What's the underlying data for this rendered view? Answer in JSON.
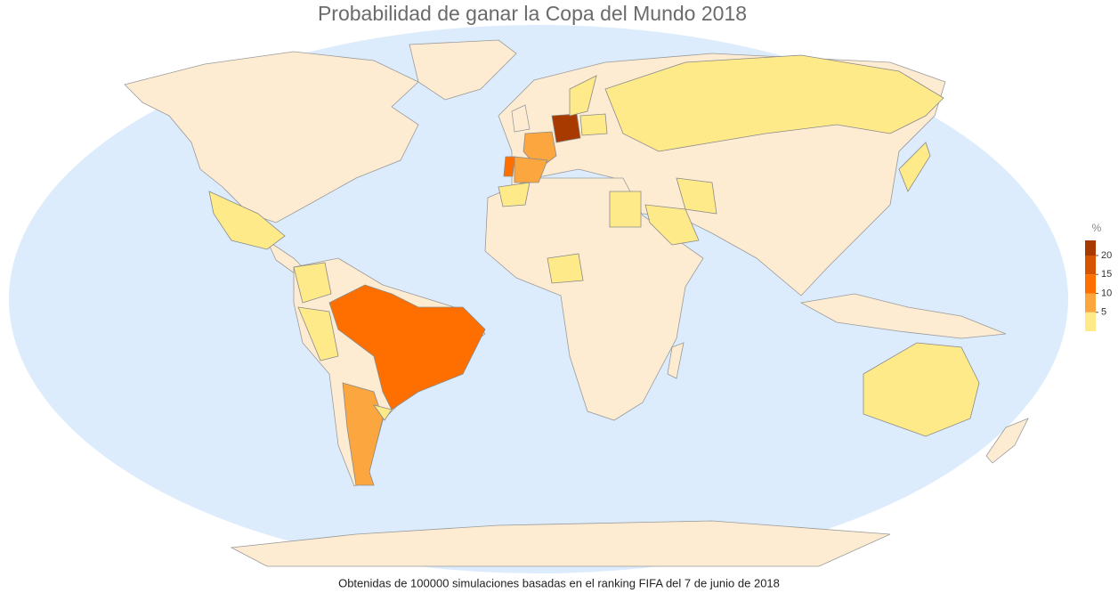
{
  "chart_data": {
    "type": "choropleth",
    "title": "Probabilidad de ganar la Copa del Mundo 2018",
    "caption": "Obtenidas de 100000 simulaciones basadas en el ranking FIFA del 7 de junio de 2018",
    "legend_title": "%",
    "values": [
      22,
      14,
      14,
      9,
      9,
      8,
      1,
      1,
      2,
      1,
      2,
      0.5,
      0.3,
      0.5,
      0.5,
      0.5,
      0.5,
      1,
      2,
      0.5
    ],
    "ylim": [
      0,
      24
    ],
    "yticks": [
      5,
      10,
      15,
      20
    ],
    "colors": [
      "#ffea8a",
      "#fca63f",
      "#ff6f00",
      "#d65400",
      "#a83a00"
    ],
    "land_color": "#feecd2",
    "legend": "right"
  }
}
